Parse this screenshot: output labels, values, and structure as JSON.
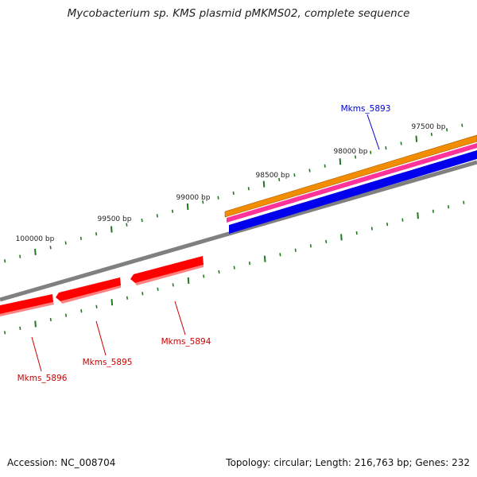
{
  "title": "Mycobacterium sp. KMS plasmid pMKMS02, complete sequence",
  "footer": {
    "accession": "Accession: NC_008704",
    "summary": "Topology: circular; Length: 216,763 bp; Genes: 232"
  },
  "colors": {
    "backbone": "#808080",
    "tick": "#1f7a1f",
    "scale_text": "#222222",
    "gene_forward_label": "#0000cc",
    "gene_reverse": "#ff0000",
    "gene_reverse_label": "#cc0000",
    "track_orange": "#f28c00",
    "track_pink": "#ff3399",
    "track_blue": "#0000ee"
  },
  "scale_labels": [
    "97500 bp",
    "98000 bp",
    "98500 bp",
    "99000 bp",
    "99500 bp",
    "100000 bp"
  ],
  "genes": [
    {
      "name": "Mkms_5893",
      "strand": "forward"
    },
    {
      "name": "Mkms_5894",
      "strand": "reverse"
    },
    {
      "name": "Mkms_5895",
      "strand": "reverse"
    },
    {
      "name": "Mkms_5896",
      "strand": "reverse"
    }
  ]
}
